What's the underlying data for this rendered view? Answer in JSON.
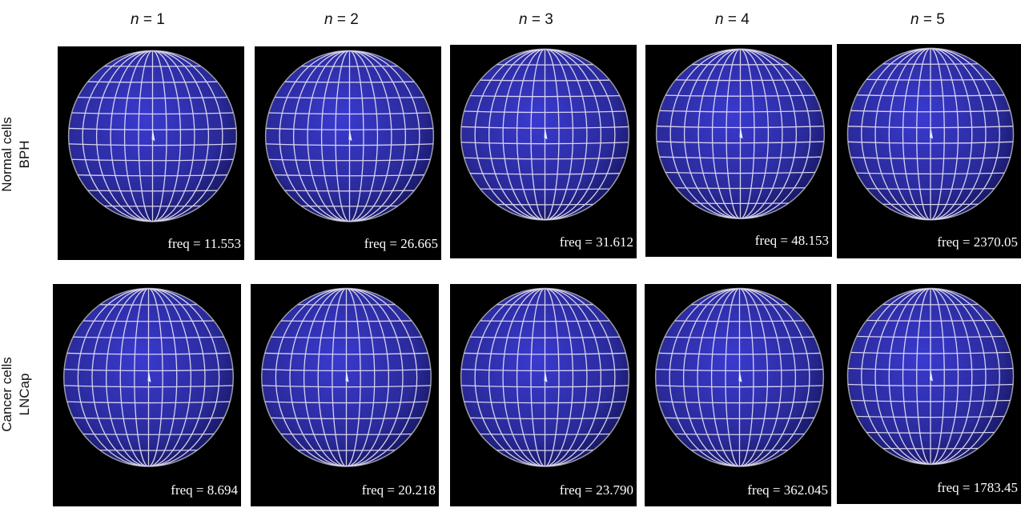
{
  "column_headers": [
    {
      "var": "n",
      "value": " = 1"
    },
    {
      "var": "n",
      "value": " = 2"
    },
    {
      "var": "n",
      "value": " = 3"
    },
    {
      "var": "n",
      "value": " = 4"
    },
    {
      "var": "n",
      "value": " = 5"
    }
  ],
  "rows": [
    {
      "label_line1": "Normal cells",
      "label_line2": "BPH",
      "panels": [
        {
          "freq": "freq = 11.553"
        },
        {
          "freq": "freq = 26.665"
        },
        {
          "freq": "freq = 31.612"
        },
        {
          "freq": "freq = 48.153"
        },
        {
          "freq": "freq = 2370.05"
        }
      ]
    },
    {
      "label_line1": "Cancer cells",
      "label_line2": "LNCap",
      "panels": [
        {
          "freq": "freq = 8.694"
        },
        {
          "freq": "freq = 20.218"
        },
        {
          "freq": "freq = 23.790"
        },
        {
          "freq": "freq = 362.045"
        },
        {
          "freq": "freq = 1783.45"
        }
      ]
    }
  ],
  "colors": {
    "panel_background": "#000000",
    "sphere_fill": "#2a2a9a",
    "mesh_lines": "#e8e4f4"
  }
}
